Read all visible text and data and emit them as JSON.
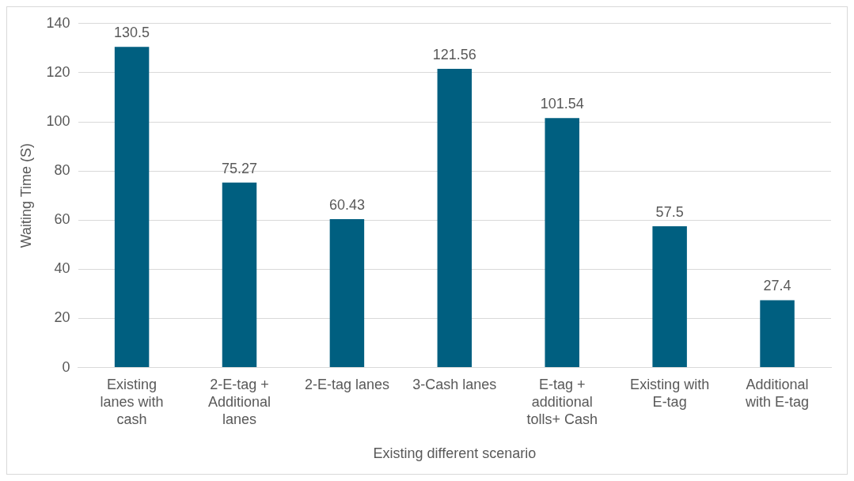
{
  "chart_data": {
    "type": "bar",
    "xlabel": "Existing different scenario",
    "ylabel": "Waiting Time (S)",
    "categories": [
      "Existing lanes with cash",
      "2-E-tag + Additional lanes",
      "2-E-tag lanes",
      "3-Cash lanes",
      "E-tag + additional tolls+ Cash",
      "Existing with E-tag",
      "Additional with E-tag"
    ],
    "values": [
      130.5,
      75.27,
      60.43,
      121.56,
      101.54,
      57.5,
      27.4
    ],
    "color": "#005f80",
    "ylim": [
      0,
      140
    ],
    "yticks": [
      0,
      20,
      40,
      60,
      80,
      100,
      120,
      140
    ],
    "grid": "y",
    "legend": false,
    "data_labels": true
  }
}
